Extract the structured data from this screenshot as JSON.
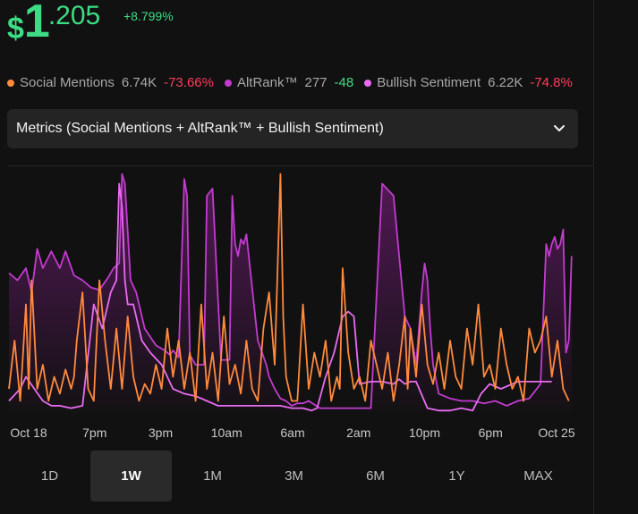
{
  "price": {
    "currency": "$",
    "whole": "1",
    "decimal": ".205",
    "change": "+8.799%"
  },
  "metrics": [
    {
      "label": "Social Mentions",
      "value": "6.74K",
      "change": "-73.66%",
      "color": "#ff8a3d",
      "change_sign": "neg"
    },
    {
      "label": "AltRank™",
      "value": "277",
      "change": "-48",
      "color": "#c23ccf",
      "change_sign": "pos"
    },
    {
      "label": "Bullish Sentiment",
      "value": "6.22K",
      "change": "-74.8%",
      "color": "#e86cf0",
      "change_sign": "neg"
    }
  ],
  "selector": {
    "label": "Metrics (Social Mentions + AltRank™ + Bullish Sentiment)"
  },
  "ranges": [
    {
      "label": "1D",
      "active": false
    },
    {
      "label": "1W",
      "active": true
    },
    {
      "label": "1M",
      "active": false
    },
    {
      "label": "3M",
      "active": false
    },
    {
      "label": "6M",
      "active": false
    },
    {
      "label": "1Y",
      "active": false
    },
    {
      "label": "MAX",
      "active": false
    }
  ],
  "chart_data": {
    "type": "line",
    "x_ticks": [
      "Oct 18",
      "7pm",
      "3pm",
      "10am",
      "6am",
      "2am",
      "10pm",
      "6pm",
      "Oct 25"
    ],
    "x_range": [
      0,
      1
    ],
    "y_range": [
      0,
      1
    ],
    "grid": false,
    "series": [
      {
        "name": "AltRank™",
        "color": "#c23ccf",
        "fill": true,
        "x": [
          0.0,
          0.015,
          0.03,
          0.04,
          0.05,
          0.06,
          0.075,
          0.09,
          0.1,
          0.115,
          0.13,
          0.145,
          0.16,
          0.175,
          0.185,
          0.195,
          0.2,
          0.205,
          0.215,
          0.225,
          0.24,
          0.26,
          0.275,
          0.285,
          0.29,
          0.3,
          0.31,
          0.315,
          0.32,
          0.33,
          0.345,
          0.35,
          0.36,
          0.375,
          0.39,
          0.395,
          0.4,
          0.405,
          0.41,
          0.415,
          0.42,
          0.44,
          0.455,
          0.46,
          0.47,
          0.48,
          0.49,
          0.5,
          0.51,
          0.52,
          0.53,
          0.55,
          0.57,
          0.59,
          0.61,
          0.64,
          0.66,
          0.68,
          0.7,
          0.71,
          0.72,
          0.73,
          0.735,
          0.74,
          0.745,
          0.75,
          0.76,
          0.78,
          0.8,
          0.82,
          0.84,
          0.86,
          0.88,
          0.9,
          0.92,
          0.94,
          0.95,
          0.955,
          0.96,
          0.965,
          0.97,
          0.975,
          0.98,
          0.985,
          0.99,
          0.995
        ],
        "y": [
          0.58,
          0.55,
          0.6,
          0.5,
          0.68,
          0.6,
          0.67,
          0.6,
          0.67,
          0.57,
          0.55,
          0.52,
          0.51,
          0.56,
          0.6,
          0.62,
          0.99,
          0.95,
          0.55,
          0.5,
          0.35,
          0.28,
          0.26,
          0.24,
          0.26,
          0.23,
          0.97,
          0.9,
          0.24,
          0.2,
          0.2,
          0.9,
          0.93,
          0.22,
          0.22,
          0.9,
          0.7,
          0.65,
          0.72,
          0.7,
          0.74,
          0.3,
          0.2,
          0.15,
          0.1,
          0.06,
          0.05,
          0.03,
          0.04,
          0.04,
          0.05,
          0.02,
          0.02,
          0.02,
          0.02,
          0.02,
          0.95,
          0.9,
          0.4,
          0.35,
          0.2,
          0.5,
          0.62,
          0.55,
          0.35,
          0.2,
          0.08,
          0.06,
          0.05,
          0.05,
          0.04,
          0.05,
          0.03,
          0.05,
          0.06,
          0.12,
          0.7,
          0.65,
          0.7,
          0.73,
          0.68,
          0.7,
          0.76,
          0.25,
          0.3,
          0.65
        ]
      },
      {
        "name": "Bullish Sentiment",
        "color": "#e86cf0",
        "fill": false,
        "x": [
          0.0,
          0.02,
          0.03,
          0.045,
          0.06,
          0.075,
          0.09,
          0.11,
          0.13,
          0.15,
          0.165,
          0.18,
          0.19,
          0.195,
          0.2,
          0.205,
          0.21,
          0.22,
          0.235,
          0.25,
          0.27,
          0.29,
          0.31,
          0.33,
          0.35,
          0.37,
          0.39,
          0.42,
          0.44,
          0.46,
          0.48,
          0.5,
          0.52,
          0.535,
          0.545,
          0.56,
          0.575,
          0.59,
          0.6,
          0.61,
          0.62,
          0.64,
          0.66,
          0.68,
          0.69,
          0.7,
          0.71,
          0.72,
          0.74,
          0.76,
          0.78,
          0.8,
          0.82,
          0.835,
          0.85,
          0.87,
          0.9,
          0.93,
          0.96
        ],
        "y": [
          0.05,
          0.1,
          0.15,
          0.1,
          0.05,
          0.03,
          0.03,
          0.02,
          0.03,
          0.45,
          0.35,
          0.5,
          0.55,
          0.95,
          0.85,
          0.55,
          0.45,
          0.45,
          0.3,
          0.25,
          0.2,
          0.1,
          0.08,
          0.07,
          0.05,
          0.03,
          0.03,
          0.03,
          0.03,
          0.03,
          0.03,
          0.02,
          0.02,
          0.01,
          0.02,
          0.15,
          0.25,
          0.4,
          0.42,
          0.4,
          0.12,
          0.13,
          0.13,
          0.12,
          0.14,
          0.12,
          0.13,
          0.13,
          0.02,
          0.01,
          0.01,
          0.02,
          0.01,
          0.08,
          0.12,
          0.1,
          0.13,
          0.13,
          0.13
        ]
      },
      {
        "name": "Social Mentions",
        "color": "#ff8a3d",
        "fill": false,
        "x": [
          0.0,
          0.01,
          0.02,
          0.03,
          0.035,
          0.04,
          0.05,
          0.06,
          0.07,
          0.08,
          0.09,
          0.1,
          0.11,
          0.115,
          0.12,
          0.13,
          0.14,
          0.15,
          0.16,
          0.17,
          0.18,
          0.19,
          0.2,
          0.21,
          0.22,
          0.23,
          0.24,
          0.25,
          0.26,
          0.27,
          0.28,
          0.29,
          0.3,
          0.31,
          0.32,
          0.33,
          0.34,
          0.35,
          0.36,
          0.37,
          0.38,
          0.39,
          0.4,
          0.41,
          0.42,
          0.43,
          0.44,
          0.45,
          0.46,
          0.47,
          0.48,
          0.485,
          0.49,
          0.495,
          0.5,
          0.51,
          0.52,
          0.53,
          0.54,
          0.55,
          0.56,
          0.57,
          0.58,
          0.585,
          0.59,
          0.6,
          0.61,
          0.62,
          0.63,
          0.64,
          0.65,
          0.66,
          0.67,
          0.68,
          0.69,
          0.7,
          0.705,
          0.71,
          0.72,
          0.73,
          0.74,
          0.75,
          0.76,
          0.77,
          0.78,
          0.79,
          0.8,
          0.81,
          0.82,
          0.83,
          0.84,
          0.85,
          0.86,
          0.87,
          0.88,
          0.89,
          0.9,
          0.91,
          0.92,
          0.93,
          0.94,
          0.95,
          0.96,
          0.97,
          0.98,
          0.99
        ],
        "y": [
          0.1,
          0.3,
          0.05,
          0.45,
          0.1,
          0.55,
          0.1,
          0.2,
          0.05,
          0.15,
          0.08,
          0.18,
          0.1,
          0.15,
          0.3,
          0.5,
          0.1,
          0.05,
          0.55,
          0.3,
          0.1,
          0.35,
          0.1,
          0.4,
          0.15,
          0.05,
          0.12,
          0.08,
          0.2,
          0.1,
          0.35,
          0.15,
          0.3,
          0.1,
          0.25,
          0.05,
          0.45,
          0.1,
          0.25,
          0.05,
          0.4,
          0.12,
          0.2,
          0.08,
          0.3,
          0.1,
          0.05,
          0.35,
          0.5,
          0.2,
          0.99,
          0.4,
          0.15,
          0.1,
          0.05,
          0.05,
          0.45,
          0.1,
          0.25,
          0.15,
          0.3,
          0.05,
          0.15,
          0.1,
          0.6,
          0.25,
          0.1,
          0.15,
          0.05,
          0.3,
          0.2,
          0.1,
          0.25,
          0.05,
          0.2,
          0.4,
          0.1,
          0.35,
          0.15,
          0.45,
          0.2,
          0.12,
          0.25,
          0.1,
          0.3,
          0.15,
          0.1,
          0.35,
          0.2,
          0.45,
          0.15,
          0.2,
          0.1,
          0.35,
          0.2,
          0.1,
          0.15,
          0.05,
          0.35,
          0.25,
          0.3,
          0.4,
          0.15,
          0.3,
          0.1,
          0.05
        ]
      }
    ]
  }
}
